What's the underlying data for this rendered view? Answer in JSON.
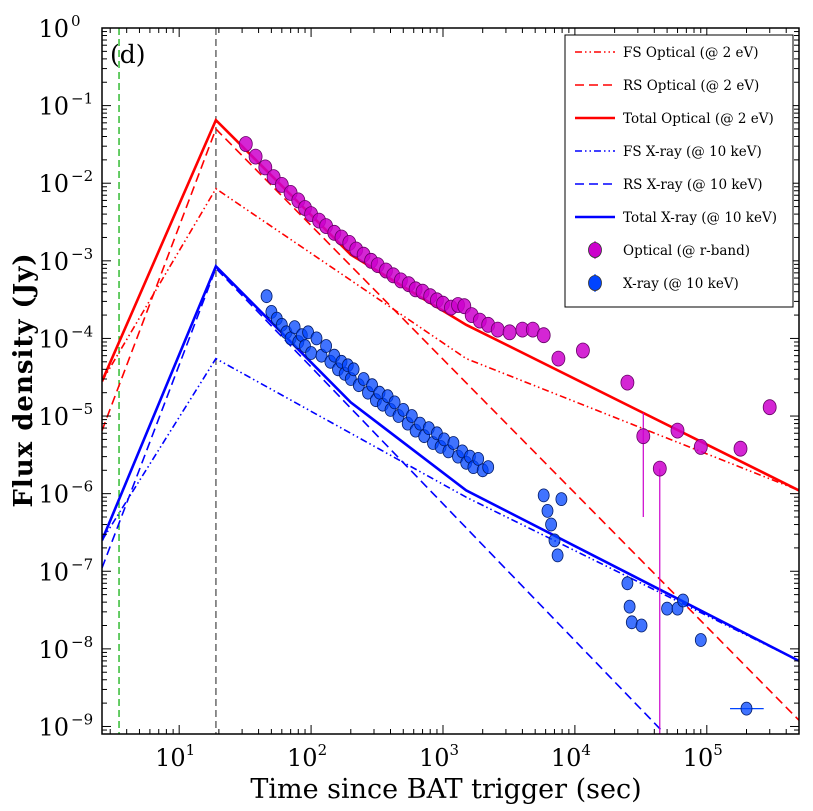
{
  "panel_tag": "(d)",
  "colors": {
    "optical": "#ff0000",
    "xray": "#0000ff",
    "optical_points": "#cc00cc",
    "xray_points": "#0044ff",
    "vline_green": "#00aa00",
    "vline_black": "#444444"
  },
  "chart_data": {
    "type": "scatter",
    "xlabel": "Time since BAT trigger (sec)",
    "ylabel": "Flux density (Jy)",
    "xscale": "log",
    "yscale": "log",
    "xlim": [
      2.6,
      500000
    ],
    "ylim": [
      8e-10,
      1
    ],
    "x_ticks": [
      {
        "value": 10,
        "base": "10",
        "exp": "1"
      },
      {
        "value": 100,
        "base": "10",
        "exp": "2"
      },
      {
        "value": 1000,
        "base": "10",
        "exp": "3"
      },
      {
        "value": 10000,
        "base": "10",
        "exp": "4"
      },
      {
        "value": 100000,
        "base": "10",
        "exp": "5"
      }
    ],
    "y_ticks": [
      {
        "value": 1,
        "base": "10",
        "exp": "0"
      },
      {
        "value": 0.1,
        "base": "10",
        "exp": "−1"
      },
      {
        "value": 0.01,
        "base": "10",
        "exp": "−2"
      },
      {
        "value": 0.001,
        "base": "10",
        "exp": "−3"
      },
      {
        "value": 0.0001,
        "base": "10",
        "exp": "−4"
      },
      {
        "value": 1e-05,
        "base": "10",
        "exp": "−5"
      },
      {
        "value": 1e-06,
        "base": "10",
        "exp": "−6"
      },
      {
        "value": 1e-07,
        "base": "10",
        "exp": "−7"
      },
      {
        "value": 1e-08,
        "base": "10",
        "exp": "−8"
      },
      {
        "value": 1e-09,
        "base": "10",
        "exp": "−9"
      }
    ],
    "vlines": [
      {
        "x": 3.5,
        "color": "#00aa00"
      },
      {
        "x": 19,
        "color": "#444444"
      }
    ],
    "legend_position": "top-right",
    "series": [
      {
        "name": "FS Optical (@ 2 eV)",
        "kind": "line",
        "style": "dashdotdot",
        "color": "#ff0000",
        "x": [
          2.6,
          19,
          1500,
          500000
        ],
        "y": [
          2.8e-05,
          0.0085,
          5.5e-05,
          1.1e-06
        ]
      },
      {
        "name": "RS Optical (@ 2 eV)",
        "kind": "line",
        "style": "dashed",
        "color": "#ff0000",
        "x": [
          2.6,
          19,
          500000
        ],
        "y": [
          6.5e-06,
          0.05,
          1.2e-09
        ]
      },
      {
        "name": "Total Optical (@ 2 eV)",
        "kind": "line",
        "style": "solid",
        "color": "#ff0000",
        "x": [
          2.6,
          19,
          200,
          1500,
          500000
        ],
        "y": [
          2.8e-05,
          0.065,
          0.0012,
          0.00015,
          1.1e-06
        ]
      },
      {
        "name": "FS X-ray (@ 10 keV)",
        "kind": "line",
        "style": "dashdotdot",
        "color": "#0000ff",
        "x": [
          2.6,
          19,
          1500,
          500000
        ],
        "y": [
          2.5e-07,
          5.5e-05,
          9e-07,
          7e-09
        ]
      },
      {
        "name": "RS X-ray (@ 10 keV)",
        "kind": "line",
        "style": "dashed",
        "color": "#0000ff",
        "x": [
          2.6,
          19,
          45000
        ],
        "y": [
          1.1e-07,
          0.0008,
          9e-10
        ]
      },
      {
        "name": "Total X-ray (@ 10 keV)",
        "kind": "line",
        "style": "solid",
        "color": "#0000ff",
        "x": [
          2.6,
          19,
          200,
          1500,
          500000
        ],
        "y": [
          2.5e-07,
          0.00085,
          1.5e-05,
          1.1e-06,
          7e-09
        ]
      },
      {
        "name": "Optical (@ r-band)",
        "kind": "points",
        "color": "#cc00cc",
        "points": [
          [
            32,
            0.032
          ],
          [
            38,
            0.022
          ],
          [
            45,
            0.016
          ],
          [
            52,
            0.012
          ],
          [
            60,
            0.0095
          ],
          [
            70,
            0.0075
          ],
          [
            80,
            0.006
          ],
          [
            90,
            0.0048
          ],
          [
            100,
            0.004
          ],
          [
            115,
            0.0033
          ],
          [
            130,
            0.0028
          ],
          [
            150,
            0.0023
          ],
          [
            170,
            0.002
          ],
          [
            195,
            0.0017
          ],
          [
            220,
            0.0014
          ],
          [
            250,
            0.0012
          ],
          [
            285,
            0.001
          ],
          [
            320,
            0.00088
          ],
          [
            370,
            0.00075
          ],
          [
            420,
            0.00065
          ],
          [
            480,
            0.00056
          ],
          [
            550,
            0.0005
          ],
          [
            620,
            0.00043
          ],
          [
            700,
            0.0004
          ],
          [
            800,
            0.00035
          ],
          [
            900,
            0.00031
          ],
          [
            1000,
            0.00028
          ],
          [
            1150,
            0.00025
          ],
          [
            1300,
            0.00027
          ],
          [
            1450,
            0.00026
          ],
          [
            1650,
            0.0002
          ],
          [
            1900,
            0.00017
          ],
          [
            2200,
            0.00015
          ],
          [
            2600,
            0.00013
          ],
          [
            3200,
            0.00012
          ],
          [
            4000,
            0.00013
          ],
          [
            4800,
            0.00013
          ],
          [
            5800,
            0.00011
          ],
          [
            7500,
            5.5e-05
          ],
          [
            11500,
            7e-05
          ],
          [
            25000,
            2.7e-05
          ],
          [
            33000,
            5.5e-06
          ],
          [
            44000,
            2.1e-06
          ],
          [
            60000,
            6.5e-06
          ],
          [
            90000,
            4e-06
          ],
          [
            180000,
            3.8e-06
          ],
          [
            300000,
            1.3e-05
          ]
        ]
      },
      {
        "name": "X-ray (@ 10 keV)",
        "kind": "points",
        "color": "#0044ff",
        "points": [
          [
            46,
            0.00035
          ],
          [
            50,
            0.00022
          ],
          [
            55,
            0.00018
          ],
          [
            60,
            0.00015
          ],
          [
            65,
            0.00012
          ],
          [
            70,
            0.0001
          ],
          [
            75,
            0.00014
          ],
          [
            80,
            9e-05
          ],
          [
            85,
            0.00011
          ],
          [
            90,
            8e-05
          ],
          [
            95,
            0.00012
          ],
          [
            100,
            6.5e-05
          ],
          [
            110,
            0.0001
          ],
          [
            120,
            6e-05
          ],
          [
            130,
            8e-05
          ],
          [
            140,
            5e-05
          ],
          [
            150,
            6e-05
          ],
          [
            160,
            4e-05
          ],
          [
            170,
            5e-05
          ],
          [
            180,
            3.5e-05
          ],
          [
            190,
            4.5e-05
          ],
          [
            200,
            3e-05
          ],
          [
            210,
            4e-05
          ],
          [
            230,
            2.5e-05
          ],
          [
            250,
            3e-05
          ],
          [
            270,
            2e-05
          ],
          [
            290,
            2.5e-05
          ],
          [
            310,
            1.6e-05
          ],
          [
            330,
            2e-05
          ],
          [
            350,
            1.4e-05
          ],
          [
            380,
            1.8e-05
          ],
          [
            400,
            1.2e-05
          ],
          [
            430,
            1.5e-05
          ],
          [
            460,
            1e-05
          ],
          [
            500,
            1.2e-05
          ],
          [
            540,
            8e-06
          ],
          [
            580,
            1e-05
          ],
          [
            620,
            6.5e-06
          ],
          [
            670,
            8e-06
          ],
          [
            720,
            5.5e-06
          ],
          [
            780,
            7e-06
          ],
          [
            840,
            4.5e-06
          ],
          [
            900,
            6e-06
          ],
          [
            960,
            4e-06
          ],
          [
            1020,
            5e-06
          ],
          [
            1100,
            3.5e-06
          ],
          [
            1200,
            4.5e-06
          ],
          [
            1300,
            3e-06
          ],
          [
            1400,
            3.5e-06
          ],
          [
            1500,
            2.5e-06
          ],
          [
            1600,
            3e-06
          ],
          [
            1700,
            2.2e-06
          ],
          [
            1850,
            2.8e-06
          ],
          [
            2000,
            2e-06
          ],
          [
            2200,
            2.2e-06
          ],
          [
            5800,
            9.5e-07
          ],
          [
            6200,
            6e-07
          ],
          [
            6600,
            4e-07
          ],
          [
            7000,
            2.5e-07
          ],
          [
            7400,
            1.6e-07
          ],
          [
            7900,
            8.5e-07
          ],
          [
            25000,
            7e-08
          ],
          [
            26000,
            3.5e-08
          ],
          [
            27000,
            2.2e-08
          ],
          [
            32000,
            2e-08
          ],
          [
            50000,
            3.3e-08
          ],
          [
            60000,
            3.3e-08
          ],
          [
            66000,
            4.2e-08
          ],
          [
            90000,
            1.3e-08
          ],
          [
            200000,
            1.7e-09
          ]
        ]
      }
    ]
  }
}
